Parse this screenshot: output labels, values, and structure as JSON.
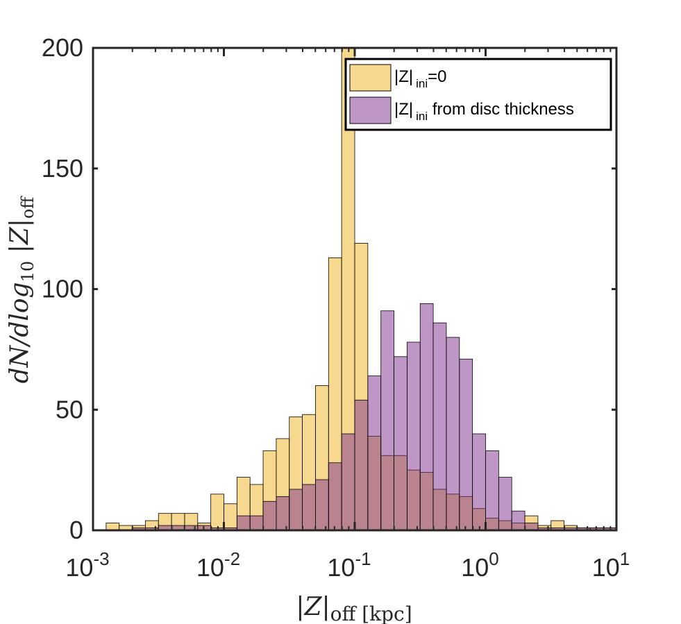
{
  "chart_data": {
    "type": "bar",
    "title": "",
    "xscale": "log",
    "xlim": [
      0.001,
      10
    ],
    "ylim": [
      0,
      200
    ],
    "bin_width_log10": 0.1,
    "bin_start_log10": -3,
    "xlabel": {
      "main": "|Z|",
      "sub": "off [kpc]"
    },
    "ylabel": {
      "main": "dN/dlog",
      "sub1": "10",
      "mid": " |Z|",
      "sub2": "off"
    },
    "xticks": [
      {
        "base": "10",
        "exp": "-3",
        "value": 0.001
      },
      {
        "base": "10",
        "exp": "-2",
        "value": 0.01
      },
      {
        "base": "10",
        "exp": "-1",
        "value": 0.1
      },
      {
        "base": "10",
        "exp": "0",
        "value": 1
      },
      {
        "base": "10",
        "exp": "1",
        "value": 10
      }
    ],
    "yticks": [
      "0",
      "50",
      "100",
      "150",
      "200"
    ],
    "series": [
      {
        "name": "|Z| ini=0",
        "legend_main": "|Z|",
        "legend_sub": "ini",
        "legend_rest": "=0",
        "color": "#EDB120",
        "opacity": 0.5,
        "values": [
          0,
          3,
          2,
          2,
          4,
          7,
          7,
          7,
          3,
          15,
          11,
          22,
          19,
          33,
          38,
          47,
          48,
          60,
          113,
          200,
          119,
          39,
          31,
          31,
          25,
          24,
          17,
          15,
          14,
          9,
          5,
          4,
          3,
          6,
          2,
          4,
          2,
          1,
          1,
          1
        ]
      },
      {
        "name": "|Z| ini from disc thickness",
        "legend_main": "|Z|",
        "legend_sub": "ini",
        "legend_rest": " from disc thickness",
        "color": "#7E2F8E",
        "opacity": 0.5,
        "values": [
          0,
          0,
          0,
          1,
          1,
          2,
          2,
          2,
          2,
          1,
          1,
          6,
          6,
          12,
          14,
          17,
          19,
          21,
          28,
          40,
          54,
          64,
          91,
          72,
          78,
          94,
          86,
          80,
          71,
          40,
          33,
          22,
          8,
          3,
          1,
          1,
          1,
          1,
          1,
          1
        ]
      }
    ],
    "legend_position": "top-right"
  }
}
